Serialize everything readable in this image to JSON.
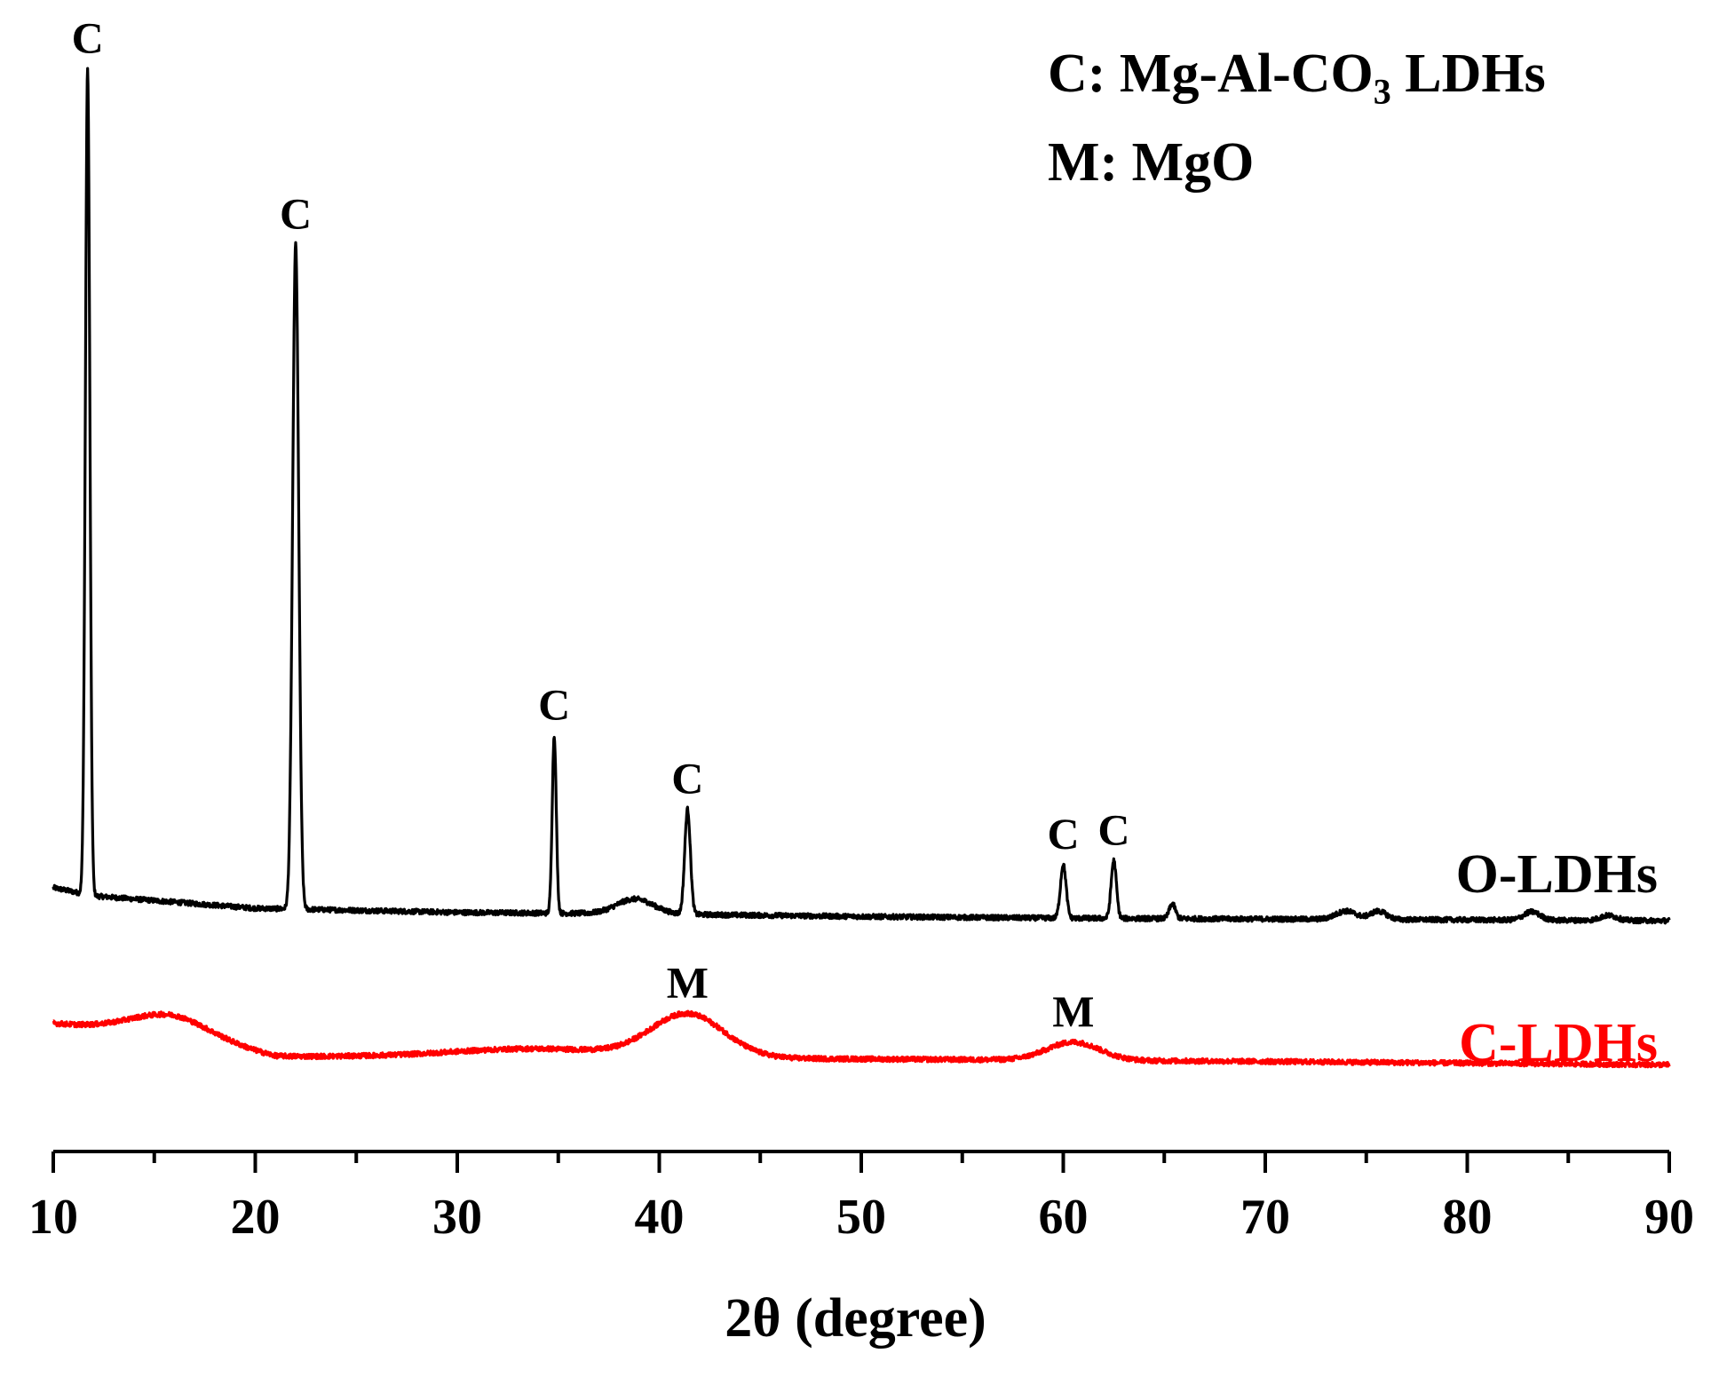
{
  "chart_data": {
    "type": "line",
    "xlabel": "2θ (degree)",
    "ylabel": "",
    "xlim": [
      10,
      90
    ],
    "x_ticks": [
      "10",
      "20",
      "30",
      "40",
      "50",
      "60",
      "70",
      "80",
      "90"
    ],
    "grid": false,
    "legend": {
      "placement": "top-right",
      "line1_prefix": "C: Mg-Al-CO",
      "line1_sub": "3",
      "line1_suffix": " LDHs",
      "line2": "M: MgO"
    },
    "series": [
      {
        "name": "O-LDHs",
        "color": "#000000",
        "baseline": [
          [
            10,
            0.04
          ],
          [
            12,
            0.03
          ],
          [
            20,
            0.015
          ],
          [
            30,
            0.01
          ],
          [
            40,
            0.008
          ],
          [
            50,
            0.005
          ],
          [
            60,
            0.003
          ],
          [
            70,
            0.002
          ],
          [
            80,
            0.001
          ],
          [
            90,
            0.0
          ]
        ],
        "peaks": [
          {
            "x": 11.7,
            "h": 1.0,
            "w": 0.11
          },
          {
            "x": 22.0,
            "h": 0.805,
            "w": 0.15
          },
          {
            "x": 34.8,
            "h": 0.215,
            "w": 0.1
          },
          {
            "x": 38.8,
            "h": 0.018,
            "w": 0.9
          },
          {
            "x": 41.4,
            "h": 0.127,
            "w": 0.14
          },
          {
            "x": 60.0,
            "h": 0.065,
            "w": 0.14
          },
          {
            "x": 62.5,
            "h": 0.07,
            "w": 0.13
          },
          {
            "x": 65.4,
            "h": 0.018,
            "w": 0.15
          },
          {
            "x": 74.0,
            "h": 0.01,
            "w": 0.5
          },
          {
            "x": 75.6,
            "h": 0.01,
            "w": 0.4
          },
          {
            "x": 83.2,
            "h": 0.01,
            "w": 0.4
          },
          {
            "x": 87.0,
            "h": 0.006,
            "w": 0.4
          }
        ],
        "annotations": [
          {
            "x": 11.7,
            "text": "C"
          },
          {
            "x": 22.0,
            "text": "C"
          },
          {
            "x": 34.8,
            "text": "C"
          },
          {
            "x": 41.4,
            "text": "C"
          },
          {
            "x": 60.0,
            "text": "C"
          },
          {
            "x": 62.5,
            "text": "C"
          }
        ]
      },
      {
        "name": "C-LDHs",
        "color": "#ff0000",
        "baseline": [
          [
            10,
            0.04
          ],
          [
            16,
            0.025
          ],
          [
            21,
            0.0
          ],
          [
            30,
            0.0
          ],
          [
            50,
            -0.003
          ],
          [
            70,
            -0.006
          ],
          [
            90,
            -0.01
          ]
        ],
        "peaks": [
          {
            "x": 15.8,
            "h": 0.025,
            "w": 2.0
          },
          {
            "x": 34.0,
            "h": 0.01,
            "w": 4.0
          },
          {
            "x": 41.4,
            "h": 0.052,
            "w": 1.8
          },
          {
            "x": 60.5,
            "h": 0.022,
            "w": 1.3
          }
        ],
        "annotations": [
          {
            "x": 41.4,
            "text": "M"
          },
          {
            "x": 60.5,
            "text": "M"
          }
        ]
      }
    ]
  }
}
